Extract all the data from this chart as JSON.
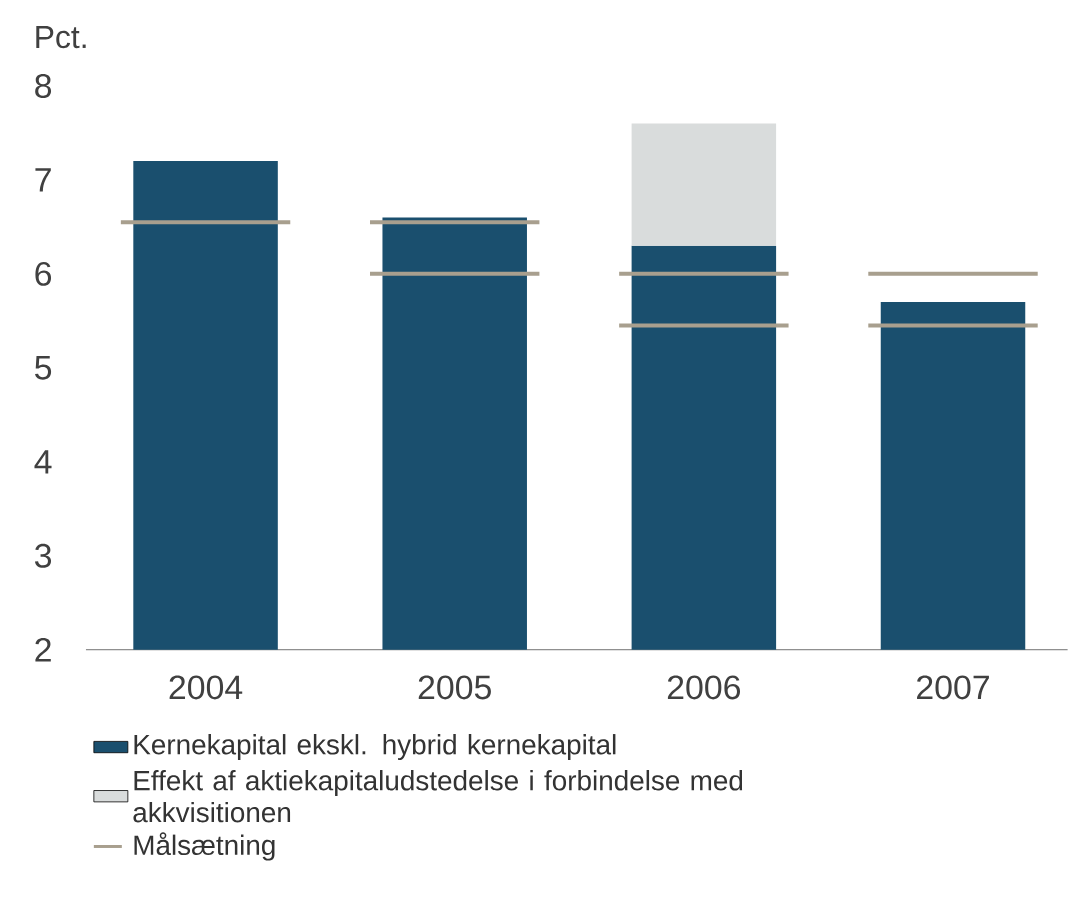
{
  "chart_data": {
    "type": "bar",
    "ylabel": "Pct.",
    "x": [
      2004,
      2005,
      2006,
      2007
    ],
    "xlim": [
      2003.52,
      2007.46
    ],
    "xticks": [
      2004,
      2005,
      2006,
      2007
    ],
    "ylim": [
      2,
      8
    ],
    "yticks": [
      2,
      3,
      4,
      5,
      6,
      7,
      8
    ],
    "legend": "bottom",
    "series": [
      {
        "name": "Kernekapital ekskl. hybrid kernekapital",
        "color": "#1a4f6e",
        "values": [
          7.2,
          6.6,
          6.3,
          5.7
        ]
      },
      {
        "name": "Effekt af aktiekapitaludstedelse i forbindelse med akkvisitionen",
        "color": "#d9dcdc",
        "base": [
          null,
          null,
          6.3,
          null
        ],
        "values": [
          null,
          null,
          1.3,
          null
        ]
      },
      {
        "name": "Målsætning",
        "type": "line",
        "color": "#a89f8e",
        "x": [
          2003.66,
          2004.34,
          2004.5,
          2004.66,
          2005.34,
          2005.5,
          2005.66,
          2006.34,
          2006.5,
          2006.66,
          2007.34
        ],
        "values": [
          6.55,
          6.55,
          null,
          6.55,
          6.55,
          null,
          6.0,
          6.0,
          null,
          6.0,
          6.0
        ]
      },
      {
        "type": "line",
        "color": "#a89f8e",
        "x": [
          2004.66,
          2005.34,
          2005.5,
          2005.66,
          2006.34,
          2006.5,
          2006.66,
          2007.34
        ],
        "values": [
          6.0,
          6.0,
          null,
          5.45,
          5.45,
          null,
          5.45,
          5.45
        ]
      }
    ]
  }
}
